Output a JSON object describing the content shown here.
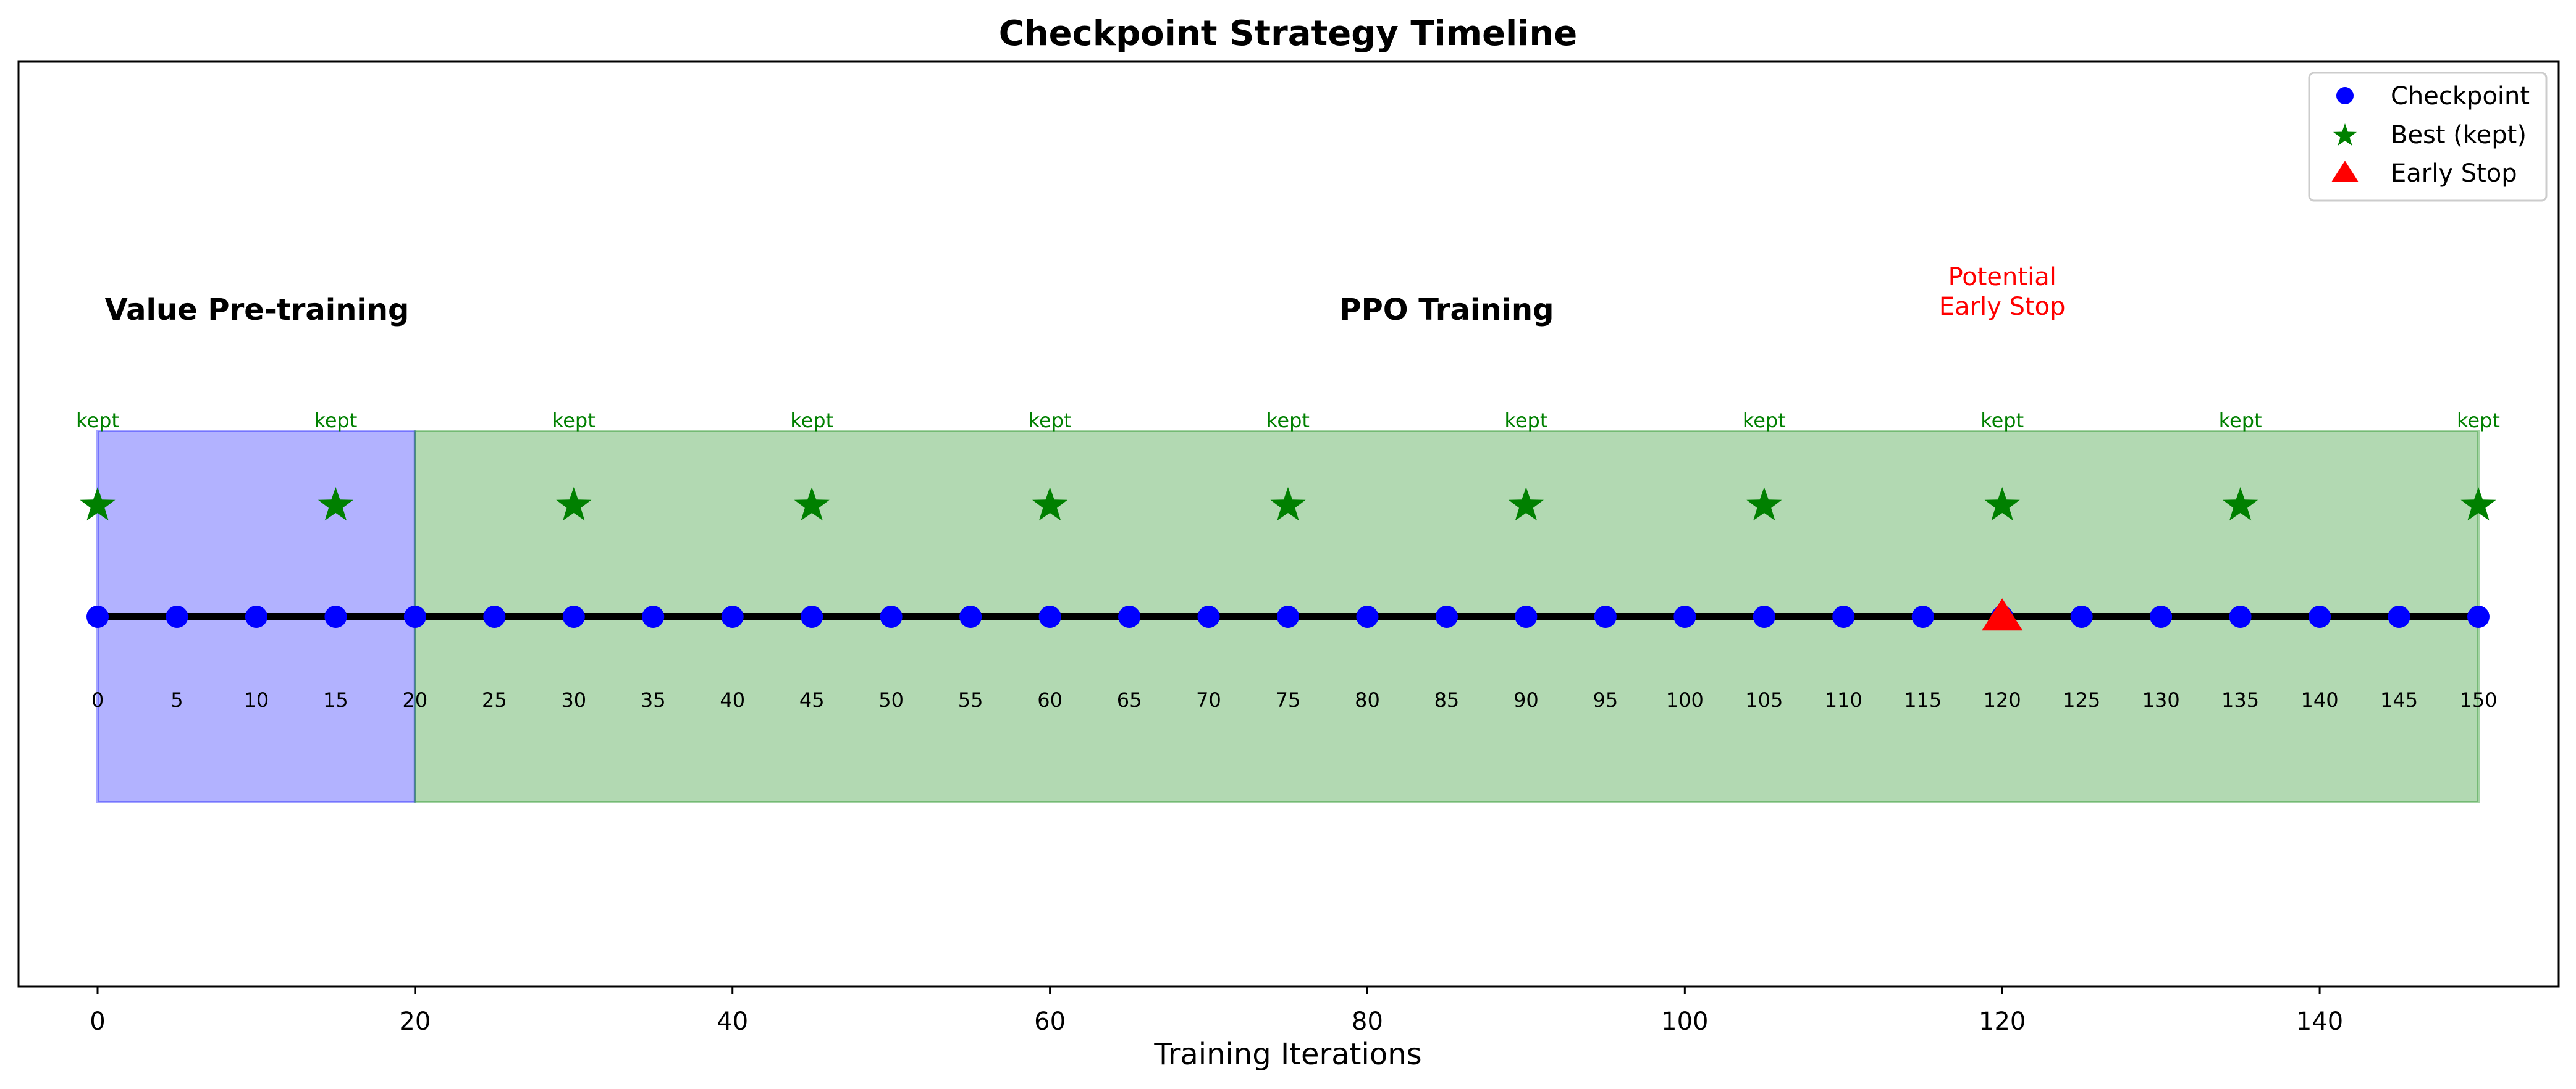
{
  "chart_data": {
    "type": "scatter",
    "title": "Checkpoint Strategy Timeline",
    "xlabel": "Training Iterations",
    "ylabel": "",
    "xlim": [
      -12.5,
      148.5
    ],
    "x_ticks": [
      0,
      20,
      40,
      60,
      80,
      100,
      120,
      140
    ],
    "y_axis_visible": false,
    "grid": false,
    "legend": {
      "placement": "top-right",
      "entries": [
        {
          "label": "Checkpoint",
          "marker": "circle",
          "color": "#0000ff"
        },
        {
          "label": "Best (kept)",
          "marker": "star",
          "color": "#008000"
        },
        {
          "label": "Early Stop",
          "marker": "triangle",
          "color": "#ff0000"
        }
      ]
    },
    "phases": [
      {
        "label": "Value Pre-training",
        "x_start": 0,
        "x_end": 20,
        "color": "#0000ff",
        "opacity": 0.3
      },
      {
        "label": "PPO Training",
        "x_start": 20,
        "x_end": 150,
        "color": "#008000",
        "opacity": 0.3
      }
    ],
    "checkpoints": {
      "x": [
        0,
        5,
        10,
        15,
        20,
        25,
        30,
        35,
        40,
        45,
        50,
        55,
        60,
        65,
        70,
        75,
        80,
        85,
        90,
        95,
        100,
        105,
        110,
        115,
        120,
        125,
        130,
        135,
        140,
        145,
        150
      ],
      "labels": [
        "0",
        "5",
        "10",
        "15",
        "20",
        "25",
        "30",
        "35",
        "40",
        "45",
        "50",
        "55",
        "60",
        "65",
        "70",
        "75",
        "80",
        "85",
        "90",
        "95",
        "100",
        "105",
        "110",
        "115",
        "120",
        "125",
        "130",
        "135",
        "140",
        "145",
        "150"
      ],
      "color": "#0000ff"
    },
    "best_kept": {
      "x": [
        0,
        15,
        30,
        45,
        60,
        75,
        90,
        105,
        120,
        135,
        150
      ],
      "label": "kept",
      "color": "#008000"
    },
    "early_stop": {
      "x": 120,
      "annotation": [
        "Potential",
        "Early Stop"
      ],
      "color": "#ff0000"
    },
    "timeline_color": "#000000"
  }
}
